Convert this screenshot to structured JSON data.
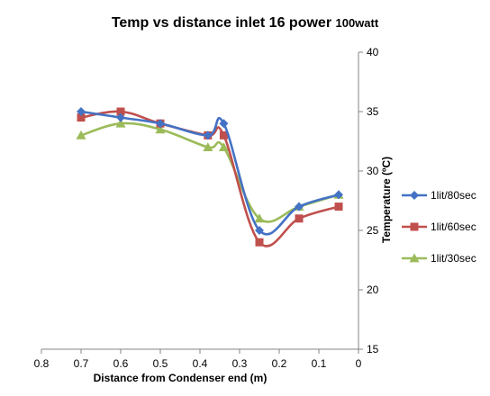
{
  "chart_data": {
    "type": "line",
    "title": "Temp vs distance inlet 16 power ",
    "title_suffix": "100watt",
    "xlabel": "Distance from Condenser end (m)",
    "ylabel": "Temperature (ºC)",
    "xlim": [
      0.8,
      0
    ],
    "x_reversed": true,
    "ylim": [
      15,
      40
    ],
    "x_ticks": [
      "0.8",
      "0.7",
      "0.6",
      "0.5",
      "0.4",
      "0.3",
      "0.2",
      "0.1",
      "0"
    ],
    "y_ticks": [
      "15",
      "20",
      "25",
      "30",
      "35",
      "40"
    ],
    "y_axis_side": "right",
    "grid": false,
    "smooth": true,
    "legend_position": "right",
    "series": [
      {
        "name": "1lit/80sec",
        "color": "#4472C4",
        "marker": "diamond",
        "x": [
          0.7,
          0.6,
          0.5,
          0.38,
          0.34,
          0.25,
          0.15,
          0.05
        ],
        "y": [
          35,
          34.5,
          34,
          33,
          34,
          25,
          27,
          28
        ]
      },
      {
        "name": "1lit/60sec",
        "color": "#C0504D",
        "marker": "square",
        "x": [
          0.7,
          0.6,
          0.5,
          0.38,
          0.34,
          0.25,
          0.15,
          0.05
        ],
        "y": [
          34.5,
          35,
          34,
          33,
          33,
          24,
          26,
          27
        ]
      },
      {
        "name": "1lit/30sec",
        "color": "#9BBB59",
        "marker": "triangle",
        "x": [
          0.7,
          0.6,
          0.5,
          0.38,
          0.34,
          0.25,
          0.15,
          0.05
        ],
        "y": [
          33,
          34,
          33.5,
          32,
          32,
          26,
          27,
          28
        ]
      }
    ]
  }
}
